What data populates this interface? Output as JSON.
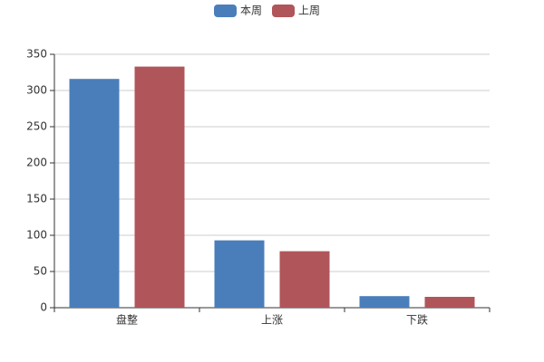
{
  "chart_data": {
    "type": "bar",
    "categories": [
      "盘整",
      "上涨",
      "下跌"
    ],
    "series": [
      {
        "name": "本周",
        "color": "#4a7ebb",
        "values": [
          316,
          93,
          16
        ]
      },
      {
        "name": "上周",
        "color": "#b0555a",
        "values": [
          333,
          78,
          15
        ]
      }
    ],
    "ylim": [
      0,
      350
    ],
    "yticks": [
      0,
      50,
      100,
      150,
      200,
      250,
      300,
      350
    ],
    "grid": true,
    "legend": "top"
  }
}
